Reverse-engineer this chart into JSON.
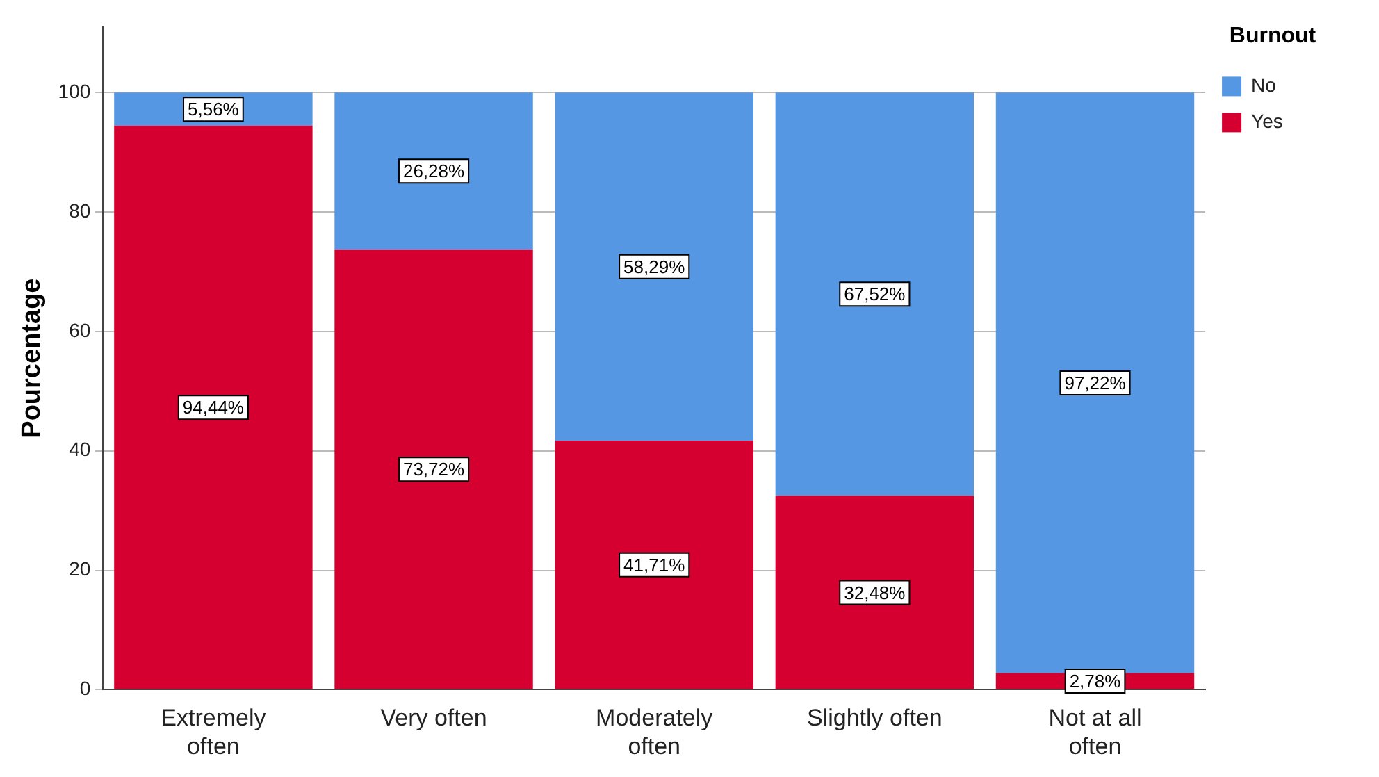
{
  "chart_data": {
    "type": "bar",
    "stacked": true,
    "ylabel": "Pourcentage",
    "legend_title": "Burnout",
    "legend": "top right",
    "grid": "y",
    "categories": [
      "Extremely often",
      "Very often",
      "Moderately often",
      "Slightly often",
      "Not at all often"
    ],
    "ylim": [
      0,
      111
    ],
    "yticks": [
      0,
      20,
      40,
      60,
      80,
      100
    ],
    "series": [
      {
        "name": "Yes",
        "color": "#d5002f",
        "values": [
          94.44,
          73.72,
          41.71,
          32.48,
          2.78
        ],
        "value_labels": [
          "94,44%",
          "73,72%",
          "41,71%",
          "32,48%",
          "2,78%"
        ]
      },
      {
        "name": "No",
        "color": "#5597e3",
        "values": [
          5.56,
          26.28,
          58.29,
          67.52,
          97.22
        ],
        "value_labels": [
          "5,56%",
          "26,28%",
          "58,29%",
          "67,52%",
          "97,22%"
        ]
      }
    ]
  }
}
